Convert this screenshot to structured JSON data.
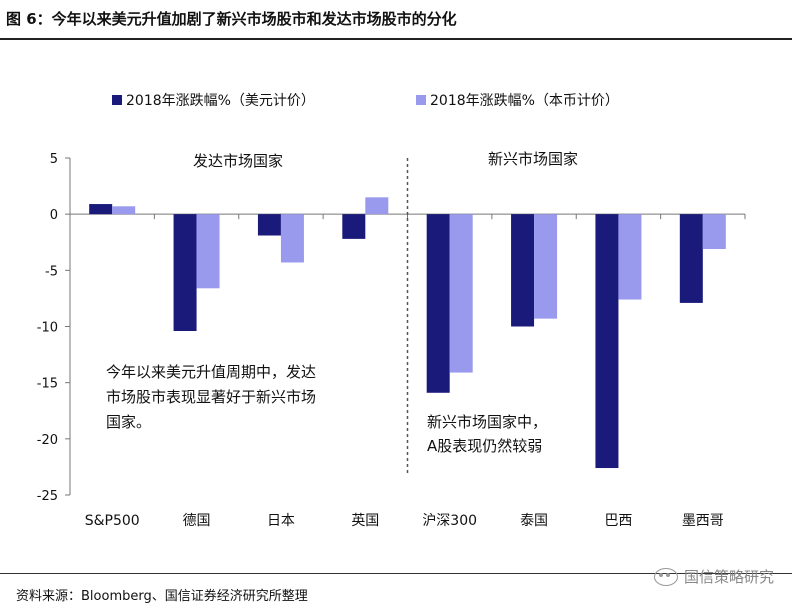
{
  "header": {
    "title": "图 6：今年以来美元升值加剧了新兴市场股市和发达市场股市的分化"
  },
  "footer": {
    "source": "资料来源：Bloomberg、国信证券经济研究所整理",
    "watermark": "国信策略研究"
  },
  "chart_data": {
    "type": "bar",
    "categories": [
      "S&P500",
      "德国",
      "日本",
      "英国",
      "沪深300",
      "泰国",
      "巴西",
      "墨西哥"
    ],
    "series": [
      {
        "name": "2018年涨跌幅%（美元计价）",
        "color": "#1a1a7a",
        "values": [
          0.9,
          -10.4,
          -1.9,
          -2.2,
          -15.9,
          -10.0,
          -22.6,
          -7.9
        ]
      },
      {
        "name": "2018年涨跌幅%（本币计价）",
        "color": "#9999ee",
        "values": [
          0.7,
          -6.6,
          -4.3,
          1.5,
          -14.1,
          -9.3,
          -7.6,
          -3.1
        ]
      }
    ],
    "ylim": [
      -25,
      5
    ],
    "yticks": [
      "5",
      "0",
      "-5",
      "-10",
      "-15",
      "-20",
      "-25"
    ],
    "group_labels": [
      "发达市场国家",
      "新兴市场国家"
    ],
    "annotations": [
      [
        "今年以来美元升值周期中，发达",
        "市场股市表现显著好于新兴市场",
        "国家。"
      ],
      [
        "新兴市场国家中，",
        "A股表现仍然较弱"
      ]
    ],
    "legend_position": "top"
  }
}
